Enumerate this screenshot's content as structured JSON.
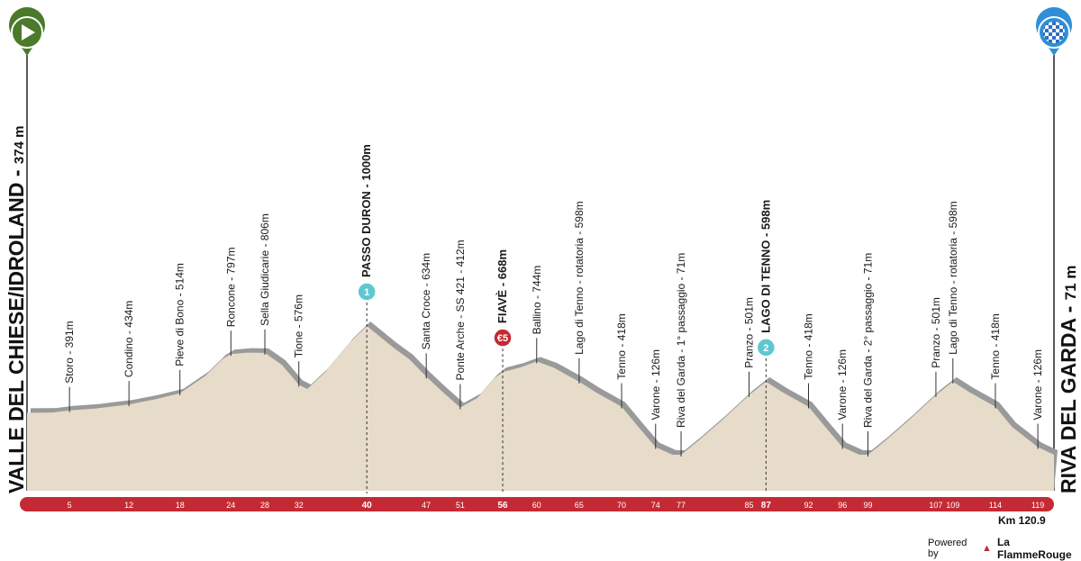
{
  "start": {
    "name": "VALLE DEL CHIESE/IDROLAND",
    "elevation": "374 m",
    "icon": "play-icon",
    "color": "#4a7a2a"
  },
  "finish": {
    "name": "RIVA DEL GARDA",
    "elevation": "71 m",
    "icon": "checkered-flag-icon",
    "color": "#2f8fd6"
  },
  "distance_label": "Km 120.9",
  "powered_by": "Powered by",
  "brand": "La FlammeRouge",
  "colors": {
    "terrain": "#e6dcc9",
    "terrain_side": "#9a9a9a",
    "axis_bar": "#c42a34",
    "kom_marker": "#5fc7cf",
    "sprint_marker": "#c42a34"
  },
  "chart_data": {
    "type": "area",
    "xlabel": "",
    "ylabel": "",
    "xlim": [
      0,
      120.9
    ],
    "ylim": [
      0,
      1000
    ],
    "total_km": 120.9,
    "profile": [
      [
        0,
        374
      ],
      [
        3,
        376
      ],
      [
        5,
        391
      ],
      [
        8,
        404
      ],
      [
        12,
        434
      ],
      [
        15,
        470
      ],
      [
        18,
        514
      ],
      [
        21,
        640
      ],
      [
        23,
        760
      ],
      [
        24,
        797
      ],
      [
        26,
        808
      ],
      [
        28,
        806
      ],
      [
        30,
        720
      ],
      [
        32,
        576
      ],
      [
        33,
        545
      ],
      [
        35,
        660
      ],
      [
        38,
        880
      ],
      [
        40,
        1000
      ],
      [
        43,
        850
      ],
      [
        45,
        760
      ],
      [
        47,
        634
      ],
      [
        49,
        520
      ],
      [
        51,
        412
      ],
      [
        53,
        480
      ],
      [
        55,
        620
      ],
      [
        56,
        668
      ],
      [
        58,
        700
      ],
      [
        60,
        744
      ],
      [
        62,
        700
      ],
      [
        65,
        598
      ],
      [
        67,
        520
      ],
      [
        70,
        418
      ],
      [
        72,
        270
      ],
      [
        74,
        126
      ],
      [
        76,
        71
      ],
      [
        77,
        71
      ],
      [
        79,
        170
      ],
      [
        82,
        330
      ],
      [
        85,
        501
      ],
      [
        87,
        598
      ],
      [
        89,
        520
      ],
      [
        92,
        418
      ],
      [
        94,
        270
      ],
      [
        96,
        126
      ],
      [
        98,
        71
      ],
      [
        99,
        71
      ],
      [
        101,
        170
      ],
      [
        104,
        330
      ],
      [
        107,
        501
      ],
      [
        109,
        598
      ],
      [
        111,
        520
      ],
      [
        114,
        418
      ],
      [
        116,
        270
      ],
      [
        119,
        126
      ],
      [
        120.9,
        71
      ]
    ],
    "waypoints": [
      {
        "km": 5,
        "label": "Storo - 391m"
      },
      {
        "km": 12,
        "label": "Condino - 434m"
      },
      {
        "km": 18,
        "label": "Pieve di Bono - 514m"
      },
      {
        "km": 24,
        "label": "Roncone - 797m"
      },
      {
        "km": 28,
        "label": "Sella Giudicarie - 806m"
      },
      {
        "km": 32,
        "label": "Tione - 576m"
      },
      {
        "km": 40,
        "label": "PASSO DURON - 1000m",
        "bold": true,
        "marker": "kom",
        "marker_label": "1"
      },
      {
        "km": 47,
        "label": "Santa Croce - 634m"
      },
      {
        "km": 51,
        "label": "Ponte Arche - SS 421 - 412m"
      },
      {
        "km": 56,
        "label": "FIAVÈ - 668m",
        "bold": true,
        "marker": "sprint",
        "marker_label": "€5"
      },
      {
        "km": 60,
        "label": "Ballino - 744m"
      },
      {
        "km": 65,
        "label": "Lago di Tenno - rotatoria - 598m"
      },
      {
        "km": 70,
        "label": "Tenno - 418m"
      },
      {
        "km": 74,
        "label": "Varone - 126m"
      },
      {
        "km": 77,
        "label": "Riva del Garda - 1° passaggio - 71m"
      },
      {
        "km": 85,
        "label": "Pranzo - 501m"
      },
      {
        "km": 87,
        "label": "LAGO DI TENNO - 598m",
        "bold": true,
        "marker": "kom",
        "marker_label": "2"
      },
      {
        "km": 92,
        "label": "Tenno - 418m"
      },
      {
        "km": 96,
        "label": "Varone - 126m"
      },
      {
        "km": 99,
        "label": "Riva del Garda - 2° passaggio - 71m"
      },
      {
        "km": 107,
        "label": "Pranzo - 501m"
      },
      {
        "km": 109,
        "label": "Lago di Tenno - rotatoria - 598m"
      },
      {
        "km": 114,
        "label": "Tenno - 418m"
      },
      {
        "km": 119,
        "label": "Varone - 126m"
      }
    ],
    "km_ticks": [
      {
        "km": 5,
        "label": "5"
      },
      {
        "km": 12,
        "label": "12"
      },
      {
        "km": 18,
        "label": "18"
      },
      {
        "km": 24,
        "label": "24"
      },
      {
        "km": 28,
        "label": "28"
      },
      {
        "km": 32,
        "label": "32"
      },
      {
        "km": 40,
        "label": "40",
        "bold": true
      },
      {
        "km": 47,
        "label": "47"
      },
      {
        "km": 51,
        "label": "51"
      },
      {
        "km": 56,
        "label": "56",
        "bold": true
      },
      {
        "km": 60,
        "label": "60"
      },
      {
        "km": 65,
        "label": "65"
      },
      {
        "km": 70,
        "label": "70"
      },
      {
        "km": 74,
        "label": "74"
      },
      {
        "km": 77,
        "label": "77"
      },
      {
        "km": 85,
        "label": "85"
      },
      {
        "km": 87,
        "label": "87",
        "bold": true
      },
      {
        "km": 92,
        "label": "92"
      },
      {
        "km": 96,
        "label": "96"
      },
      {
        "km": 99,
        "label": "99"
      },
      {
        "km": 107,
        "label": "107"
      },
      {
        "km": 109,
        "label": "109"
      },
      {
        "km": 114,
        "label": "114"
      },
      {
        "km": 119,
        "label": "119"
      }
    ]
  }
}
